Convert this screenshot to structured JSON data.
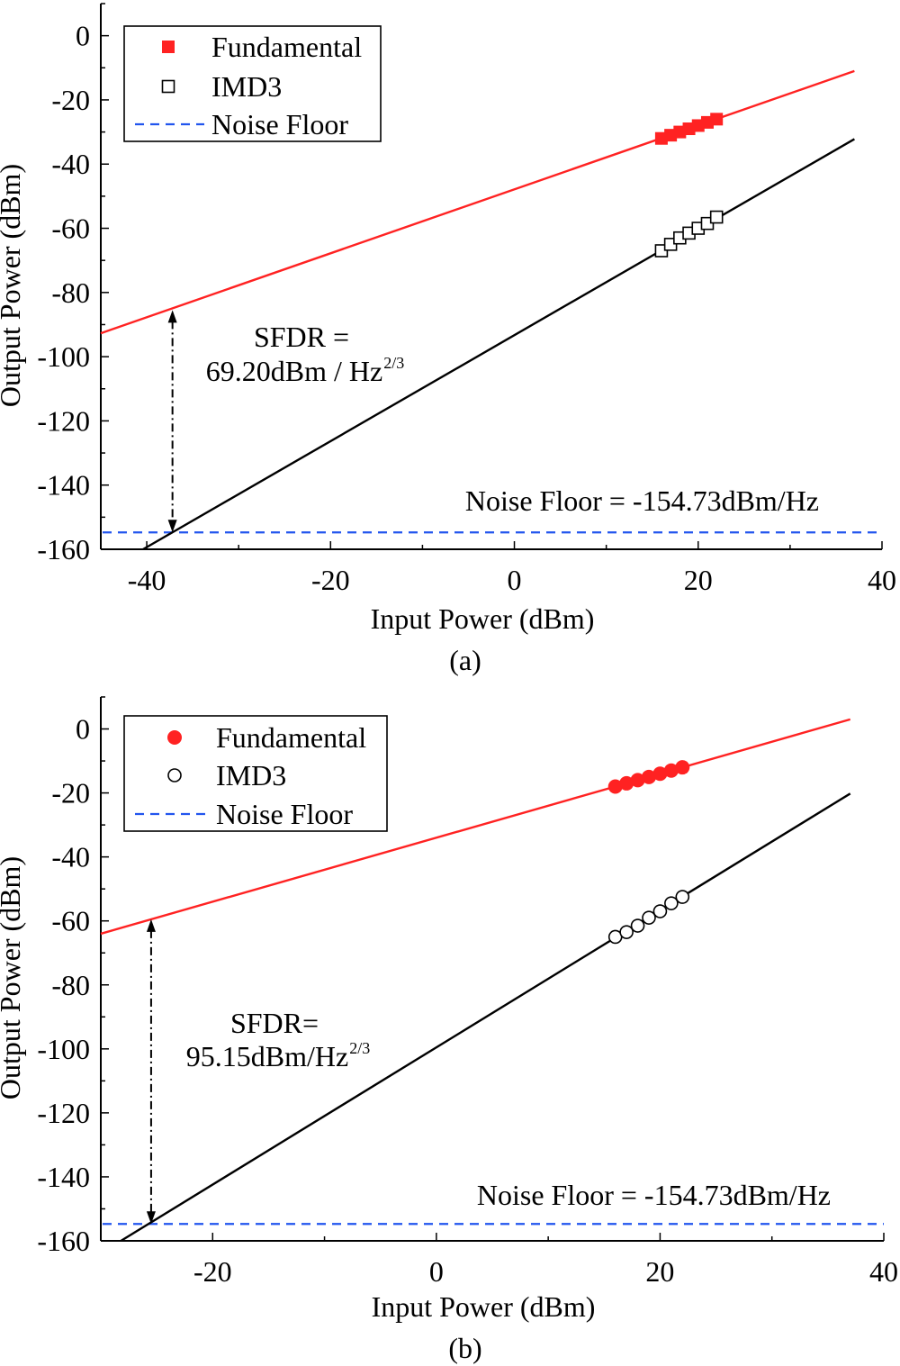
{
  "colors": {
    "fundamental": "#ff2222",
    "imd3": "#000000",
    "noise": "#2255ee"
  },
  "chart_data": [
    {
      "type": "scatter",
      "caption": "(a)",
      "xlabel": "Input Power (dBm)",
      "ylabel": "Output Power (dBm)",
      "xlim": [
        -45,
        40
      ],
      "ylim": [
        -160,
        10
      ],
      "xticks": [
        -40,
        -20,
        0,
        20,
        40
      ],
      "yticks": [
        0,
        -20,
        -40,
        -60,
        -80,
        -100,
        -120,
        -140,
        -160
      ],
      "marker_open": "square",
      "legend_position": "top-left",
      "series": [
        {
          "name": "Fundamental",
          "marker": "filled-square",
          "x": [
            16,
            17,
            18,
            19,
            20,
            21,
            22
          ],
          "y": [
            -32,
            -31,
            -30,
            -29,
            -28,
            -27,
            -26
          ]
        },
        {
          "name": "IMD3",
          "marker": "open-square",
          "x": [
            16,
            17,
            18,
            19,
            20,
            21,
            22
          ],
          "y": [
            -67,
            -65,
            -63,
            -61.5,
            -60,
            -58.5,
            -56.5
          ]
        }
      ],
      "fit_lines": [
        {
          "series": "Fundamental",
          "x": [
            -45,
            37
          ],
          "y": [
            -92.7,
            -11
          ]
        },
        {
          "series": "IMD3",
          "x": [
            -40.4,
            37
          ],
          "y": [
            -160,
            -32.2
          ]
        }
      ],
      "noise_floor": {
        "name": "Noise Floor",
        "y": -154.73
      },
      "annotations": {
        "sfdr_line1": "SFDR =",
        "sfdr_line2": "69.20dBm / Hz",
        "sfdr_sup": "2/3",
        "noise_text": "Noise Floor = -154.73dBm/Hz"
      },
      "sfdr_arrow": {
        "x": -37.2,
        "y_top": -85.5,
        "y_bottom": -154.73
      }
    },
    {
      "type": "scatter",
      "caption": "(b)",
      "xlabel": "Input Power (dBm)",
      "ylabel": "Output Power (dBm)",
      "xlim": [
        -30,
        40
      ],
      "ylim": [
        -160,
        10
      ],
      "xticks": [
        -20,
        0,
        20,
        40
      ],
      "yticks": [
        0,
        -20,
        -40,
        -60,
        -80,
        -100,
        -120,
        -140,
        -160
      ],
      "marker_open": "circle",
      "legend_position": "top-left",
      "series": [
        {
          "name": "Fundamental",
          "marker": "filled-circle",
          "x": [
            16,
            17,
            18,
            19,
            20,
            21,
            22
          ],
          "y": [
            -18,
            -17,
            -16,
            -15,
            -14,
            -13,
            -12
          ]
        },
        {
          "name": "IMD3",
          "marker": "open-circle",
          "x": [
            16,
            17,
            18,
            19,
            20,
            21,
            22
          ],
          "y": [
            -65,
            -63.5,
            -61.5,
            -59,
            -57,
            -54.5,
            -52.5
          ]
        }
      ],
      "fit_lines": [
        {
          "series": "Fundamental",
          "x": [
            -30,
            37
          ],
          "y": [
            -64,
            3
          ]
        },
        {
          "series": "IMD3",
          "x": [
            -28.2,
            37
          ],
          "y": [
            -160,
            -20.2
          ]
        }
      ],
      "noise_floor": {
        "name": "Noise Floor",
        "y": -154.73
      },
      "annotations": {
        "sfdr_line1": "SFDR=",
        "sfdr_line2": "95.15dBm/Hz",
        "sfdr_sup": "2/3",
        "noise_text": "Noise Floor = -154.73dBm/Hz"
      },
      "sfdr_arrow": {
        "x": -25.5,
        "y_top": -59.5,
        "y_bottom": -154.73
      }
    }
  ]
}
